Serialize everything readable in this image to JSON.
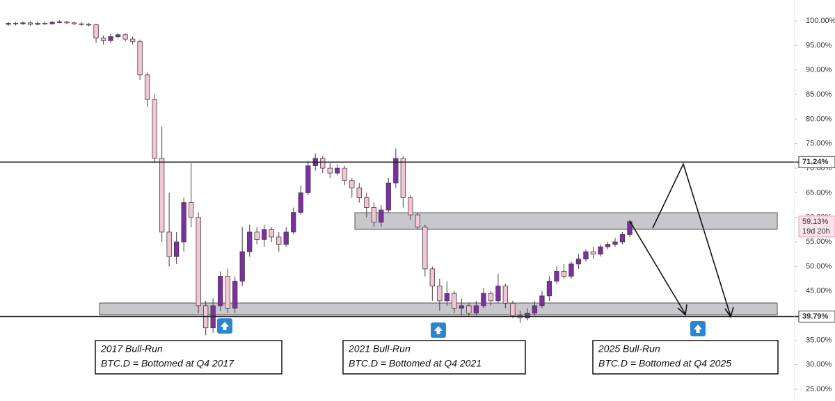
{
  "chart_data": {
    "type": "candlestick",
    "up_color": "#7b2fa0",
    "down_color": "#f3c6d6",
    "ylim": [
      22.6,
      104.25
    ],
    "yticks": [
      {
        "value": 100,
        "label": "100.00%"
      },
      {
        "value": 95,
        "label": "95.00%"
      },
      {
        "value": 90,
        "label": "90.00%"
      },
      {
        "value": 85,
        "label": "85.00%"
      },
      {
        "value": 80,
        "label": "80.00%"
      },
      {
        "value": 75,
        "label": "75.00%"
      },
      {
        "value": 70,
        "label": "70.00%"
      },
      {
        "value": 65,
        "label": "65.00%"
      },
      {
        "value": 60,
        "label": "60.00%"
      },
      {
        "value": 55,
        "label": "55.00%"
      },
      {
        "value": 50,
        "label": "50.00%"
      },
      {
        "value": 45,
        "label": "45.00%"
      },
      {
        "value": 40,
        "label": "40.00%"
      },
      {
        "value": 35,
        "label": "35.00%"
      },
      {
        "value": 30,
        "label": "30.00%"
      },
      {
        "value": 25,
        "label": "25.00%"
      }
    ],
    "open": [
      99.3,
      99.5,
      99.4,
      99.6,
      99.3,
      99.5,
      99.4,
      99.7,
      99.8,
      99.6,
      99.4,
      99.3,
      99.2,
      96.5,
      96.0,
      96.8,
      97.2,
      96.3,
      95.8,
      89.0,
      84.0,
      72.0,
      57.0,
      52.0,
      55.0,
      63.0,
      60.0,
      42.0,
      37.5,
      42.0,
      48.0,
      41.5,
      47.0,
      53.0,
      57.0,
      55.5,
      57.5,
      56.0,
      54.5,
      57.0,
      61.0,
      65.0,
      70.5,
      72.0,
      70.0,
      69.0,
      70.0,
      67.5,
      66.0,
      64.0,
      62.0,
      59.0,
      61.5,
      67.0,
      72.0,
      64.0,
      60.5,
      58.0,
      49.5,
      46.0,
      43.0,
      44.5,
      41.5,
      42.0,
      40.5,
      42.0,
      44.5,
      43.0,
      46.0,
      42.5,
      40.0,
      39.5,
      40.5,
      42.0,
      44.0,
      47.0,
      49.0,
      48.0,
      50.5,
      51.5,
      53.0,
      52.5,
      54.0,
      54.5,
      55.0,
      56.5
    ],
    "high": [
      99.8,
      99.8,
      99.9,
      99.9,
      99.8,
      99.8,
      100.0,
      100.1,
      100.0,
      99.8,
      99.7,
      99.6,
      99.4,
      97.0,
      97.3,
      97.6,
      97.5,
      96.8,
      96.2,
      89.5,
      85.0,
      78.5,
      65.0,
      57.0,
      64.0,
      71.0,
      61.0,
      43.0,
      43.5,
      49.0,
      49.5,
      48.0,
      58.0,
      58.5,
      58.0,
      58.5,
      58.0,
      57.0,
      58.0,
      62.0,
      66.5,
      71.5,
      73.0,
      72.5,
      71.0,
      70.8,
      70.5,
      68.0,
      67.0,
      65.0,
      63.0,
      62.5,
      68.0,
      74.0,
      72.5,
      64.5,
      61.0,
      58.5,
      50.0,
      47.5,
      47.0,
      45.0,
      43.5,
      42.5,
      43.0,
      45.5,
      45.0,
      48.5,
      46.5,
      43.0,
      41.0,
      41.5,
      43.0,
      45.0,
      48.0,
      50.0,
      50.5,
      51.0,
      52.5,
      53.5,
      54.0,
      54.5,
      55.0,
      55.8,
      57.0,
      59.5
    ],
    "low": [
      99.0,
      99.1,
      99.2,
      99.0,
      99.1,
      99.1,
      99.2,
      99.5,
      99.3,
      99.1,
      99.0,
      98.9,
      95.5,
      95.2,
      95.5,
      96.4,
      95.8,
      95.2,
      88.0,
      82.5,
      71.0,
      55.0,
      50.0,
      50.5,
      53.0,
      58.0,
      40.5,
      36.0,
      36.5,
      41.0,
      40.5,
      40.5,
      46.0,
      52.0,
      54.5,
      54.0,
      55.0,
      53.0,
      54.0,
      56.5,
      60.5,
      64.5,
      69.5,
      69.0,
      68.0,
      68.5,
      66.5,
      64.0,
      63.0,
      60.0,
      58.0,
      58.0,
      61.0,
      66.0,
      62.0,
      59.5,
      57.5,
      48.0,
      43.0,
      41.0,
      42.0,
      40.5,
      40.0,
      39.8,
      40.0,
      41.5,
      42.0,
      42.5,
      41.5,
      39.5,
      38.5,
      39.0,
      40.0,
      41.5,
      43.0,
      46.5,
      47.5,
      47.5,
      49.5,
      51.0,
      51.5,
      52.0,
      53.5,
      54.0,
      54.5,
      56.0
    ],
    "close": [
      99.5,
      99.4,
      99.6,
      99.3,
      99.5,
      99.4,
      99.7,
      99.8,
      99.6,
      99.4,
      99.3,
      99.2,
      96.5,
      96.0,
      96.8,
      97.2,
      96.3,
      95.8,
      89.0,
      84.0,
      72.0,
      57.0,
      52.0,
      55.0,
      63.0,
      60.0,
      42.0,
      37.5,
      42.0,
      48.0,
      41.5,
      47.0,
      53.0,
      57.0,
      55.5,
      57.5,
      56.0,
      54.5,
      57.0,
      61.0,
      65.0,
      70.5,
      72.0,
      70.0,
      69.0,
      70.0,
      67.5,
      66.0,
      64.0,
      62.0,
      59.0,
      61.5,
      67.0,
      72.0,
      64.0,
      60.5,
      58.0,
      49.5,
      46.0,
      43.0,
      44.5,
      41.5,
      42.0,
      40.5,
      42.0,
      44.5,
      43.0,
      46.0,
      42.5,
      40.0,
      39.5,
      40.5,
      42.0,
      44.0,
      47.0,
      49.0,
      48.0,
      50.5,
      51.5,
      53.0,
      52.5,
      54.0,
      54.5,
      55.0,
      56.5,
      59.13
    ],
    "levels": [
      {
        "value": 71.24,
        "label": "71.24%"
      },
      {
        "value": 39.79,
        "label": "39.79%"
      }
    ],
    "zones": [
      {
        "low": 57.55,
        "high": 60.94
      },
      {
        "low": 40.14,
        "high": 42.55
      }
    ],
    "last_price": {
      "value": 59.13,
      "label": "59.13%",
      "countdown": "19d 20h"
    },
    "annotations": [
      {
        "lines": [
          "2017 Bull-Run",
          "BTC.D = Bottomed at Q4 2017"
        ]
      },
      {
        "lines": [
          "2021 Bull-Run",
          "BTC.D = Bottomed at Q4 2021"
        ]
      },
      {
        "lines": [
          "2025 Bull-Run",
          "BTC.D = Bottomed at Q4 2025"
        ]
      }
    ]
  }
}
